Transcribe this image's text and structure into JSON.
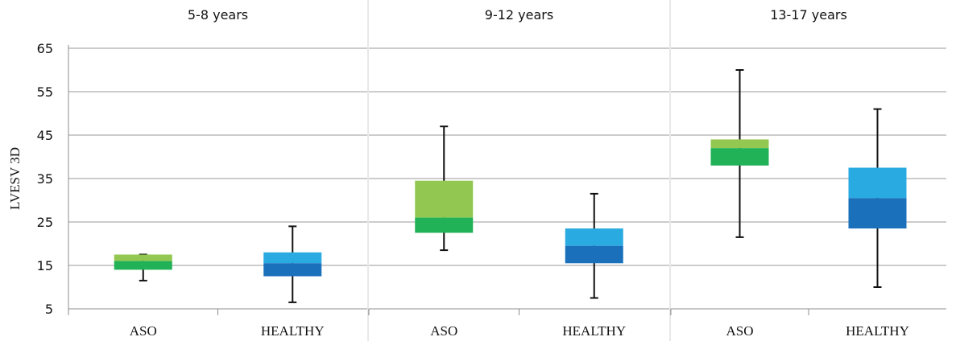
{
  "chart_data": {
    "type": "boxplot",
    "ylabel": "LVESV 3D",
    "ylim": [
      5,
      65
    ],
    "yticks": [
      5,
      15,
      25,
      35,
      45,
      55,
      65
    ],
    "grid": true,
    "categories": [
      "ASO",
      "HEALTHY"
    ],
    "colors": {
      "ASO": {
        "upper": "#92c851",
        "lower": "#21b157"
      },
      "HEALTHY": {
        "upper": "#29aae1",
        "lower": "#1a70bb"
      }
    },
    "panels": [
      {
        "title": "5-8 years",
        "boxes": [
          {
            "category": "ASO",
            "min": 11.5,
            "q1": 14,
            "median": 16,
            "q3": 17.5,
            "max": 17.5
          },
          {
            "category": "HEALTHY",
            "min": 6.5,
            "q1": 12.5,
            "median": 15.5,
            "q3": 18,
            "max": 24
          }
        ]
      },
      {
        "title": "9-12 years",
        "boxes": [
          {
            "category": "ASO",
            "min": 18.5,
            "q1": 22.5,
            "median": 26,
            "q3": 34.5,
            "max": 47
          },
          {
            "category": "HEALTHY",
            "min": 7.5,
            "q1": 15.5,
            "median": 19.5,
            "q3": 23.5,
            "max": 31.5
          }
        ]
      },
      {
        "title": "13-17 years",
        "boxes": [
          {
            "category": "ASO",
            "min": 21.5,
            "q1": 38,
            "median": 42,
            "q3": 44,
            "max": 60
          },
          {
            "category": "HEALTHY",
            "min": 10,
            "q1": 23.5,
            "median": 30.5,
            "q3": 37.5,
            "max": 51
          }
        ]
      }
    ]
  }
}
